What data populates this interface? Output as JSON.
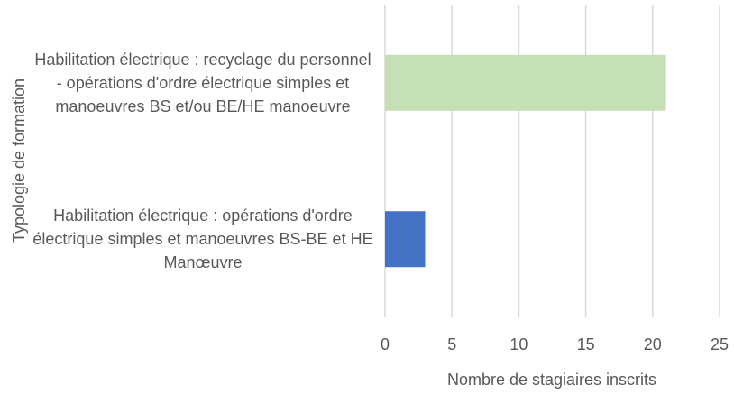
{
  "chart_data": {
    "type": "barh",
    "categories": [
      "Habilitation électrique : recyclage du personnel - opérations d'ordre électrique simples et manoeuvres BS et/ou BE/HE manoeuvre",
      "Habilitation électrique : opérations d'ordre électrique simples et manoeuvres BS-BE et HE Manœuvre"
    ],
    "values": [
      21,
      3
    ],
    "colors": [
      "#c5e0b4",
      "#4472c4"
    ],
    "xlabel": "Nombre de stagiaires inscrits",
    "ylabel": "Typologie de formation",
    "xlim": [
      0,
      25
    ],
    "xticks": [
      0,
      5,
      10,
      15,
      20,
      25
    ],
    "grid": true
  }
}
